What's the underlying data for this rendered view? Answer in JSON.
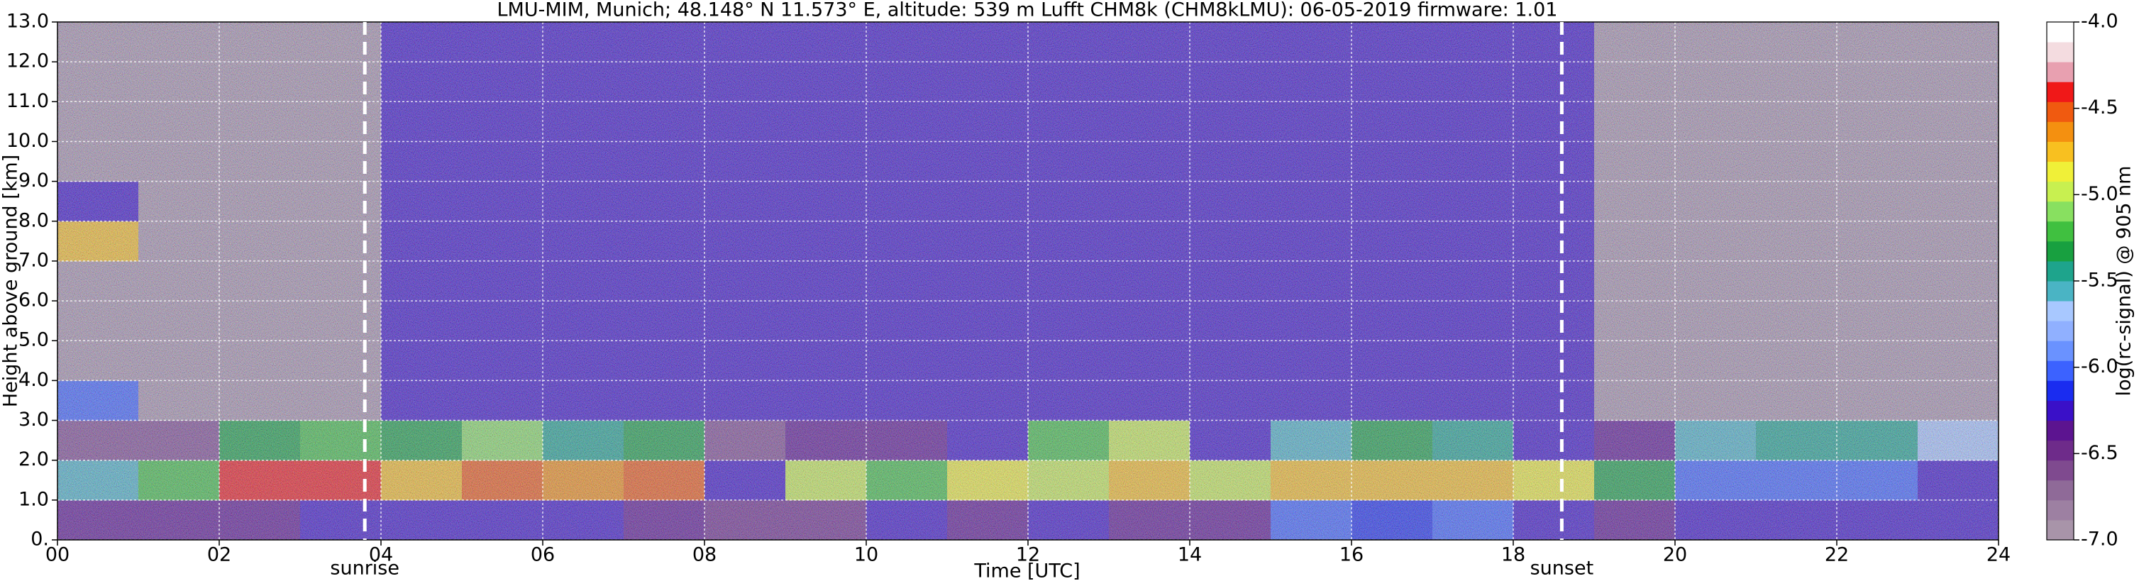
{
  "chart_data": {
    "type": "heatmap",
    "title": "LMU-MIM, Munich; 48.148° N 11.573° E, altitude: 539 m    Lufft CHM8k (CHM8kLMU): 06-05-2019    firmware: 1.01",
    "x_label": "Time [UTC]",
    "y_label": "Height above ground [km]",
    "colorbar_label": "log(rc-signal) @ 905 nm",
    "xlim": [
      0,
      24
    ],
    "ylim": [
      0,
      13
    ],
    "xticks": [
      {
        "value": 0,
        "label": "00"
      },
      {
        "value": 2,
        "label": "02"
      },
      {
        "value": 4,
        "label": "04"
      },
      {
        "value": 6,
        "label": "06"
      },
      {
        "value": 8,
        "label": "08"
      },
      {
        "value": 10,
        "label": "10"
      },
      {
        "value": 12,
        "label": "12"
      },
      {
        "value": 14,
        "label": "14"
      },
      {
        "value": 16,
        "label": "16"
      },
      {
        "value": 18,
        "label": "18"
      },
      {
        "value": 20,
        "label": "20"
      },
      {
        "value": 22,
        "label": "22"
      },
      {
        "value": 24,
        "label": "24"
      }
    ],
    "yticks": [
      {
        "value": 0,
        "label": "0."
      },
      {
        "value": 1,
        "label": "1.0"
      },
      {
        "value": 2,
        "label": "2.0"
      },
      {
        "value": 3,
        "label": "3.0"
      },
      {
        "value": 4,
        "label": "4.0"
      },
      {
        "value": 5,
        "label": "5.0"
      },
      {
        "value": 6,
        "label": "6.0"
      },
      {
        "value": 7,
        "label": "7.0"
      },
      {
        "value": 8,
        "label": "8.0"
      },
      {
        "value": 9,
        "label": "9.0"
      },
      {
        "value": 10,
        "label": "10.0"
      },
      {
        "value": 11,
        "label": "11.0"
      },
      {
        "value": 12,
        "label": "12.0"
      },
      {
        "value": 13,
        "label": "13.0"
      }
    ],
    "clim": [
      -7,
      -4
    ],
    "cticks": [
      {
        "value": -4,
        "label": "-4.0"
      },
      {
        "value": -4.5,
        "label": "-4.5"
      },
      {
        "value": -5,
        "label": "-5.0"
      },
      {
        "value": -5.5,
        "label": "-5.5"
      },
      {
        "value": -6,
        "label": "-6.0"
      },
      {
        "value": -6.5,
        "label": "-6.5"
      },
      {
        "value": -7,
        "label": "-7.0"
      }
    ],
    "colorscale": [
      "#a894a9",
      "#9d80a2",
      "#8f6a98",
      "#7f4a8f",
      "#6e2b8a",
      "#5c1490",
      "#3a10c8",
      "#1a2cf0",
      "#3c62ff",
      "#6a92ff",
      "#90b0ff",
      "#a8c8ff",
      "#4ab4c4",
      "#1ea48c",
      "#18a040",
      "#40c040",
      "#88e060",
      "#c8f050",
      "#f0f038",
      "#f8c020",
      "#f49010",
      "#f05a10",
      "#f01818",
      "#e8a0b0",
      "#f4dce0",
      "#ffffff"
    ],
    "grid": true,
    "annotations": [
      {
        "label": "sunrise",
        "x": 3.8
      },
      {
        "label": "sunset",
        "x": 18.6
      }
    ],
    "x": [
      0,
      1,
      2,
      3,
      4,
      5,
      6,
      7,
      8,
      9,
      10,
      11,
      12,
      13,
      14,
      15,
      16,
      17,
      18,
      19,
      20,
      21,
      22,
      23
    ],
    "y": [
      0,
      1,
      2,
      3,
      4,
      5,
      6,
      7,
      8,
      9,
      10,
      11,
      12
    ],
    "z": [
      [
        -6.4,
        -6.4,
        -6.4,
        -6.3,
        -6.2,
        -6.3,
        -6.3,
        -6.4,
        -6.5,
        -6.5,
        -6.3,
        -6.4,
        -6.3,
        -6.4,
        -6.4,
        -6.0,
        -6.1,
        -6.0,
        -6.2,
        -6.4,
        -6.3,
        -6.2,
        -6.2,
        -6.3
      ],
      [
        -5.6,
        -5.2,
        -4.4,
        -4.4,
        -4.8,
        -4.5,
        -4.6,
        -4.5,
        -6.2,
        -5.0,
        -5.2,
        -4.9,
        -5.0,
        -4.7,
        -5.0,
        -4.8,
        -4.7,
        -4.8,
        -4.9,
        -5.3,
        -6.0,
        -6.0,
        -6.0,
        -6.2
      ],
      [
        -6.6,
        -6.6,
        -5.3,
        -5.2,
        -5.3,
        -5.1,
        -5.4,
        -5.3,
        -6.6,
        -6.4,
        -6.4,
        -6.2,
        -5.2,
        -5.0,
        -6.2,
        -5.6,
        -5.3,
        -5.4,
        -6.2,
        -6.4,
        -5.6,
        -5.5,
        -5.5,
        -5.7
      ],
      [
        -6.0,
        -6.9,
        -6.9,
        -6.9,
        -6.3,
        -6.3,
        -6.3,
        -6.3,
        -6.3,
        -6.3,
        -6.3,
        -6.3,
        -6.3,
        -6.3,
        -6.3,
        -6.3,
        -6.3,
        -6.3,
        -6.3,
        -6.9,
        -6.9,
        -6.9,
        -6.9,
        -6.9
      ],
      [
        -6.9,
        -6.9,
        -6.9,
        -6.9,
        -6.2,
        -6.2,
        -6.2,
        -6.2,
        -6.2,
        -6.2,
        -6.2,
        -6.2,
        -6.2,
        -6.2,
        -6.2,
        -6.2,
        -6.2,
        -6.2,
        -6.2,
        -6.9,
        -6.9,
        -6.9,
        -6.9,
        -6.9
      ],
      [
        -6.9,
        -6.9,
        -6.9,
        -6.9,
        -6.2,
        -6.2,
        -6.2,
        -6.2,
        -6.2,
        -6.2,
        -6.2,
        -6.2,
        -6.2,
        -6.2,
        -6.2,
        -6.2,
        -6.2,
        -6.2,
        -6.2,
        -6.9,
        -6.9,
        -6.9,
        -6.9,
        -6.9
      ],
      [
        -6.9,
        -6.9,
        -6.9,
        -6.9,
        -6.2,
        -6.2,
        -6.2,
        -6.2,
        -6.2,
        -6.2,
        -6.2,
        -6.2,
        -6.2,
        -6.2,
        -6.2,
        -6.2,
        -6.2,
        -6.2,
        -6.2,
        -6.9,
        -6.9,
        -6.9,
        -6.9,
        -6.9
      ],
      [
        -4.8,
        -6.9,
        -6.9,
        -6.9,
        -6.2,
        -6.2,
        -6.2,
        -6.2,
        -6.2,
        -6.2,
        -6.2,
        -6.2,
        -6.2,
        -6.2,
        -6.2,
        -6.2,
        -6.2,
        -6.2,
        -6.2,
        -6.9,
        -6.9,
        -6.9,
        -6.9,
        -6.9
      ],
      [
        -6.3,
        -6.9,
        -6.9,
        -6.9,
        -6.2,
        -6.2,
        -6.2,
        -6.2,
        -6.2,
        -6.2,
        -6.2,
        -6.2,
        -6.2,
        -6.2,
        -6.2,
        -6.2,
        -6.2,
        -6.2,
        -6.2,
        -6.9,
        -6.9,
        -6.9,
        -6.9,
        -6.9
      ],
      [
        -6.9,
        -6.9,
        -6.9,
        -6.9,
        -6.2,
        -6.2,
        -6.2,
        -6.2,
        -6.2,
        -6.2,
        -6.2,
        -6.2,
        -6.2,
        -6.2,
        -6.2,
        -6.2,
        -6.2,
        -6.2,
        -6.2,
        -6.9,
        -6.9,
        -6.9,
        -6.9,
        -6.9
      ],
      [
        -6.9,
        -6.9,
        -6.9,
        -6.9,
        -6.2,
        -6.2,
        -6.2,
        -6.2,
        -6.2,
        -6.2,
        -6.2,
        -6.2,
        -6.2,
        -6.2,
        -6.2,
        -6.2,
        -6.2,
        -6.2,
        -6.2,
        -6.9,
        -6.9,
        -6.9,
        -6.9,
        -6.9
      ],
      [
        -6.9,
        -6.9,
        -6.9,
        -6.9,
        -6.2,
        -6.2,
        -6.2,
        -6.2,
        -6.2,
        -6.2,
        -6.2,
        -6.2,
        -6.2,
        -6.2,
        -6.2,
        -6.2,
        -6.2,
        -6.2,
        -6.2,
        -6.9,
        -6.9,
        -6.9,
        -6.9,
        -6.9
      ],
      [
        -6.9,
        -6.9,
        -6.9,
        -6.9,
        -6.2,
        -6.2,
        -6.2,
        -6.2,
        -6.2,
        -6.2,
        -6.2,
        -6.2,
        -6.2,
        -6.2,
        -6.2,
        -6.2,
        -6.2,
        -6.2,
        -6.2,
        -6.9,
        -6.9,
        -6.9,
        -6.9,
        -6.9
      ]
    ]
  }
}
